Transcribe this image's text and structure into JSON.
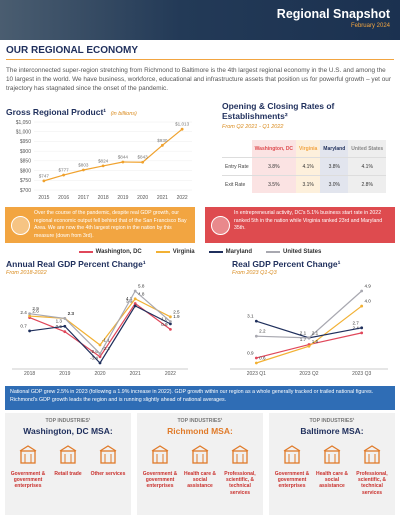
{
  "header": {
    "title": "Regional Snapshot",
    "date": "February 2024"
  },
  "section_title": "OUR REGIONAL ECONOMY",
  "intro": "The interconnected super-region stretching from Richmond to Baltimore is the 4th largest regional economy in the U.S. and among the 10 largest in the world. We have business, workforce, educational and infrastructure assets that position us for powerful growth – yet our trajectory has stagnated since the onset of the pandemic.",
  "establishments": {
    "title": "Opening & Closing Rates of Establishments²",
    "subtitle": "From Q2 2021 - Q1 2022",
    "columns": [
      "Washington, DC",
      "Virginia",
      "Maryland",
      "United States"
    ],
    "rows": [
      [
        "Entry Rate",
        "3.8%",
        "4.1%",
        "3.8%",
        "4.1%"
      ],
      [
        "Exit Rate",
        "3.5%",
        "3.1%",
        "3.0%",
        "2.8%"
      ]
    ]
  },
  "callouts": [
    "Over the course of the pandemic, despite real GDP growth, our regional economic output fell behind that of the San Francisco Bay Area. We are now the 4th largest region in the nation by this measure (down from 3rd).",
    "In entrepreneurial activity, DC's 5.1% business start rate in 2022 ranked 5th in the nation while Virginia ranked 23rd and Maryland 35th."
  ],
  "chart_data": [
    {
      "type": "line",
      "title": "Gross Regional Product¹",
      "subtitle": "(in billions)",
      "categories": [
        "2015",
        "2016",
        "2017",
        "2018",
        "2019",
        "2020",
        "2021",
        "2022"
      ],
      "values": [
        747,
        777,
        803,
        824,
        844,
        843,
        930,
        1013
      ],
      "value_labels": [
        "$747",
        "$777",
        "$803",
        "$824",
        "$844",
        "$843",
        "$930",
        "$1,013"
      ],
      "color": "#f0a22e",
      "ylim": [
        700,
        1050
      ],
      "yticks": [
        {
          "value": 700,
          "label": "$700"
        },
        {
          "value": 750,
          "label": "$750"
        },
        {
          "value": 800,
          "label": "$800"
        },
        {
          "value": 850,
          "label": "$850"
        },
        {
          "value": 900,
          "label": "$900"
        },
        {
          "value": 950,
          "label": "$950"
        },
        {
          "value": 1000,
          "label": "$1,000"
        },
        {
          "value": 1050,
          "label": "$1,050"
        }
      ],
      "grid": true
    },
    {
      "type": "line",
      "title": "Annual Real GDP Percent Change¹",
      "subtitle": "From 2018-2022",
      "categories": [
        "2018",
        "2019",
        "2020",
        "2021",
        "2022"
      ],
      "series": [
        {
          "name": "Washington, DC",
          "color": "#e0475a",
          "values": [
            2.4,
            0.6,
            -2.6,
            4.2,
            0.9
          ]
        },
        {
          "name": "Virginia",
          "color": "#f2b134",
          "values": [
            2.6,
            2.3,
            -1.1,
            4.8,
            2.5
          ]
        },
        {
          "name": "Maryland",
          "color": "#1f2f5c",
          "values": [
            0.7,
            1.3,
            -3.4,
            3.9,
            1.6
          ]
        },
        {
          "name": "United States",
          "color": "#a8a8b0",
          "values": [
            2.9,
            2.3,
            -2.2,
            5.8,
            1.9
          ]
        }
      ]
    },
    {
      "type": "line",
      "title": "Real GDP Percent Change¹",
      "subtitle": "From 2023 Q1-Q3",
      "categories": [
        "2023 Q1",
        "2023 Q2",
        "2023 Q3"
      ],
      "series": [
        {
          "color": "#e0475a",
          "values": [
            0.9,
            1.7,
            2.4
          ]
        },
        {
          "color": "#f2b134",
          "values": [
            0.6,
            1.6,
            4.0
          ],
          "value_labels": [
            "0.6",
            "1.6",
            "4.0"
          ]
        },
        {
          "color": "#1f2f5c",
          "values": [
            3.1,
            2.1,
            2.7
          ]
        },
        {
          "color": "#a8a8b0",
          "values": [
            2.2,
            2.1,
            4.9
          ]
        }
      ]
    }
  ],
  "note": "National GDP grew 2.5% in 2023 (following a 1.9% increase in 2022). GDP growth within our region as a whole generally tracked or trailed national figures. Richmond's GDP growth leads the region and is running slightly ahead of national averages.",
  "industries": [
    {
      "label": "TOP INDUSTRIES¹",
      "msa": "Washington, DC MSA:",
      "items": [
        "Government & government enterprises",
        "Retail trade",
        "Other services"
      ]
    },
    {
      "label": "TOP INDUSTRIES¹",
      "msa": "Richmond MSA:",
      "items": [
        "Government & government enterprises",
        "Health care & social assistance",
        "Professional, scientific, & technical services"
      ]
    },
    {
      "label": "TOP INDUSTRIES¹",
      "msa": "Baltimore MSA:",
      "items": [
        "Government & government enterprises",
        "Health care & social assistance",
        "Professional, scientific, & technical services"
      ]
    }
  ]
}
